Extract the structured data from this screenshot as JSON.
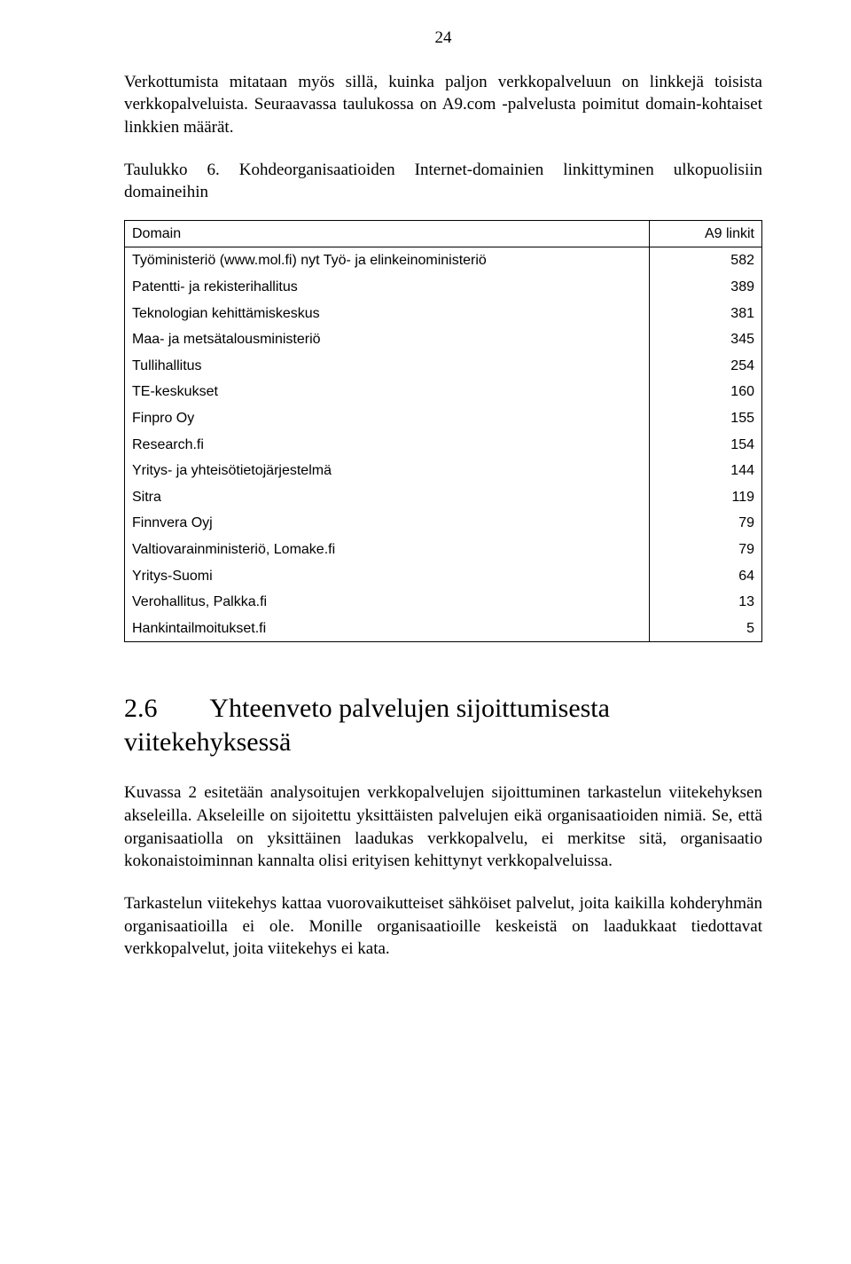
{
  "page_number": "24",
  "intro_paragraph": "Verkottumista mitataan myös sillä, kuinka paljon verkkopalveluun on linkkejä toisista verkkopalveluista. Seuraavassa taulukossa on A9.com -palvelusta poimitut domain-kohtaiset linkkien määrät.",
  "table_caption": "Taulukko 6.   Kohdeorganisaatioiden Internet-domainien linkittyminen ulkopuolisiin domaineihin",
  "table": {
    "header_name": "Domain",
    "header_value": "A9 linkit",
    "rows": [
      {
        "name": "Työministeriö (www.mol.fi) nyt Työ- ja elinkeinoministeriö",
        "value": "582"
      },
      {
        "name": "Patentti- ja rekisterihallitus",
        "value": "389"
      },
      {
        "name": "Teknologian kehittämiskeskus",
        "value": "381"
      },
      {
        "name": "Maa- ja metsätalousministeriö",
        "value": "345"
      },
      {
        "name": "Tullihallitus",
        "value": "254"
      },
      {
        "name": "TE-keskukset",
        "value": "160"
      },
      {
        "name": "Finpro Oy",
        "value": "155"
      },
      {
        "name": "Research.fi",
        "value": "154"
      },
      {
        "name": "Yritys- ja yhteisötietojärjestelmä",
        "value": "144"
      },
      {
        "name": "Sitra",
        "value": "119"
      },
      {
        "name": "Finnvera Oyj",
        "value": "79"
      },
      {
        "name": "Valtiovarainministeriö, Lomake.fi",
        "value": "79"
      },
      {
        "name": "Yritys-Suomi",
        "value": "64"
      },
      {
        "name": "Verohallitus, Palkka.fi",
        "value": "13"
      },
      {
        "name": "Hankintailmoitukset.fi",
        "value": "5"
      }
    ]
  },
  "section": {
    "number": "2.6",
    "title": "Yhteenveto palvelujen sijoittumisesta viitekehyksessä"
  },
  "body_paragraph_1": "Kuvassa 2 esitetään analysoitujen verkkopalvelujen sijoittuminen tarkastelun viitekehyksen akseleilla. Akseleille on sijoitettu yksittäisten palvelujen eikä organisaatioiden nimiä. Se, että organisaatiolla on yksittäinen laadukas verkkopalvelu, ei merkitse sitä, organisaatio kokonaistoiminnan kannalta olisi erityisen kehittynyt verkkopalveluissa.",
  "body_paragraph_2": "Tarkastelun viitekehys kattaa vuorovaikutteiset sähköiset palvelut, joita kaikilla kohderyhmän organisaatioilla ei ole. Monille organisaatioille keskeistä on laadukkaat tiedottavat verkkopalvelut, joita viitekehys ei kata."
}
